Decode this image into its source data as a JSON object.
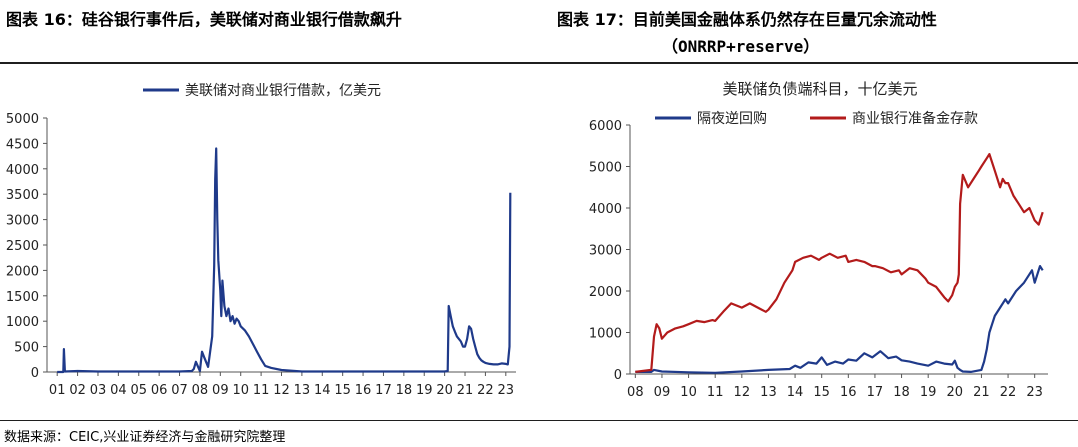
{
  "header": {
    "left_title": "图表 16：硅谷银行事件后，美联储对商业银行借款飙升",
    "right_title": "图表 17：目前美国金融体系仍然存在巨量冗余流动性",
    "right_title_line2": "（ONRRP+reserve）"
  },
  "footer": {
    "source": "数据来源：CEIC,兴业证券经济与金融研究院整理"
  },
  "chart_data": [
    {
      "type": "line",
      "title": "",
      "xlabel": "",
      "ylabel": "",
      "ylim": [
        0,
        5000
      ],
      "yticks": [
        0,
        500,
        1000,
        1500,
        2000,
        2500,
        3000,
        3500,
        4000,
        4500,
        5000
      ],
      "xticks": [
        "01",
        "02",
        "03",
        "04",
        "05",
        "06",
        "07",
        "08",
        "09",
        "10",
        "11",
        "12",
        "13",
        "14",
        "15",
        "16",
        "17",
        "18",
        "19",
        "20",
        "21",
        "22",
        "23"
      ],
      "legend_position": "top",
      "series": [
        {
          "name": "美联储对商业银行借款，亿美元",
          "color": "#1f3a8a",
          "x": [
            2001.0,
            2001.3,
            2001.33,
            2001.38,
            2002,
            2003,
            2004,
            2005,
            2006,
            2007,
            2007.6,
            2007.7,
            2007.8,
            2008.0,
            2008.1,
            2008.2,
            2008.4,
            2008.6,
            2008.7,
            2008.75,
            2008.8,
            2008.85,
            2008.9,
            2009.0,
            2009.05,
            2009.1,
            2009.2,
            2009.3,
            2009.4,
            2009.5,
            2009.6,
            2009.7,
            2009.8,
            2009.9,
            2010.0,
            2010.2,
            2010.4,
            2010.6,
            2010.8,
            2011.0,
            2011.2,
            2011.5,
            2012.0,
            2013.0,
            2014.0,
            2015.0,
            2016.0,
            2017.0,
            2018.0,
            2019.0,
            2020.0,
            2020.15,
            2020.2,
            2020.3,
            2020.4,
            2020.5,
            2020.6,
            2020.8,
            2020.9,
            2021.0,
            2021.1,
            2021.2,
            2021.3,
            2021.4,
            2021.5,
            2021.6,
            2021.7,
            2021.8,
            2021.9,
            2022.0,
            2022.2,
            2022.4,
            2022.6,
            2022.8,
            2023.0,
            2023.1,
            2023.18,
            2023.22
          ],
          "values": [
            0,
            0,
            450,
            10,
            20,
            10,
            10,
            10,
            10,
            10,
            20,
            60,
            200,
            20,
            400,
            300,
            100,
            700,
            2100,
            3800,
            4400,
            3000,
            2200,
            1600,
            1100,
            1800,
            1300,
            1100,
            1250,
            1000,
            1100,
            950,
            1050,
            1000,
            900,
            820,
            700,
            550,
            400,
            250,
            120,
            80,
            40,
            10,
            10,
            10,
            10,
            10,
            10,
            10,
            10,
            20,
            1300,
            1100,
            900,
            800,
            700,
            600,
            500,
            500,
            650,
            900,
            850,
            650,
            500,
            350,
            280,
            230,
            200,
            180,
            160,
            150,
            150,
            170,
            160,
            150,
            500,
            3530
          ]
        }
      ]
    },
    {
      "type": "line",
      "title": "美联储负债端科目，十亿美元",
      "xlabel": "",
      "ylabel": "",
      "ylim": [
        0,
        6000
      ],
      "yticks": [
        0,
        1000,
        2000,
        3000,
        4000,
        5000,
        6000
      ],
      "xticks": [
        "08",
        "09",
        "10",
        "11",
        "12",
        "13",
        "14",
        "15",
        "16",
        "17",
        "18",
        "19",
        "20",
        "21",
        "22",
        "23"
      ],
      "legend_position": "top",
      "series": [
        {
          "name": "隔夜逆回购",
          "color": "#1f3a8a",
          "x": [
            2008.0,
            2008.6,
            2008.7,
            2009.0,
            2010.0,
            2011.0,
            2012.0,
            2013.0,
            2013.8,
            2014.0,
            2014.2,
            2014.5,
            2014.8,
            2015.0,
            2015.2,
            2015.5,
            2015.8,
            2016.0,
            2016.3,
            2016.6,
            2016.9,
            2017.2,
            2017.5,
            2017.8,
            2018.0,
            2018.3,
            2018.6,
            2019.0,
            2019.3,
            2019.6,
            2019.9,
            2020.0,
            2020.1,
            2020.2,
            2020.3,
            2020.6,
            2021.0,
            2021.1,
            2021.2,
            2021.3,
            2021.4,
            2021.5,
            2021.7,
            2021.9,
            2022.0,
            2022.3,
            2022.6,
            2022.9,
            2023.0,
            2023.2,
            2023.3
          ],
          "values": [
            50,
            50,
            100,
            60,
            40,
            30,
            60,
            100,
            120,
            200,
            150,
            280,
            250,
            400,
            220,
            300,
            250,
            350,
            320,
            500,
            400,
            550,
            380,
            420,
            330,
            300,
            250,
            200,
            300,
            250,
            230,
            320,
            150,
            100,
            60,
            50,
            100,
            300,
            600,
            1000,
            1200,
            1400,
            1600,
            1800,
            1700,
            2000,
            2200,
            2500,
            2200,
            2600,
            2500
          ]
        },
        {
          "name": "商业银行准备金存款",
          "color": "#b31b1b",
          "x": [
            2008.0,
            2008.6,
            2008.7,
            2008.8,
            2008.9,
            2009.0,
            2009.2,
            2009.5,
            2009.8,
            2010.0,
            2010.3,
            2010.6,
            2010.9,
            2011.0,
            2011.3,
            2011.6,
            2011.8,
            2012.0,
            2012.3,
            2012.6,
            2012.9,
            2013.0,
            2013.3,
            2013.6,
            2013.9,
            2014.0,
            2014.3,
            2014.6,
            2014.9,
            2015.0,
            2015.3,
            2015.6,
            2015.9,
            2016.0,
            2016.3,
            2016.6,
            2016.9,
            2017.0,
            2017.3,
            2017.6,
            2017.9,
            2018.0,
            2018.3,
            2018.6,
            2018.9,
            2019.0,
            2019.3,
            2019.6,
            2019.75,
            2019.9,
            2020.0,
            2020.1,
            2020.15,
            2020.2,
            2020.3,
            2020.5,
            2020.7,
            2020.9,
            2021.0,
            2021.2,
            2021.3,
            2021.5,
            2021.7,
            2021.8,
            2021.9,
            2022.0,
            2022.2,
            2022.4,
            2022.6,
            2022.8,
            2023.0,
            2023.15,
            2023.3
          ],
          "values": [
            50,
            100,
            900,
            1200,
            1100,
            850,
            1000,
            1100,
            1150,
            1200,
            1280,
            1250,
            1300,
            1280,
            1500,
            1700,
            1650,
            1600,
            1700,
            1600,
            1500,
            1550,
            1800,
            2200,
            2500,
            2700,
            2800,
            2850,
            2750,
            2800,
            2900,
            2800,
            2850,
            2700,
            2750,
            2700,
            2600,
            2600,
            2550,
            2450,
            2500,
            2400,
            2550,
            2500,
            2300,
            2200,
            2100,
            1850,
            1750,
            1900,
            2100,
            2200,
            2400,
            4100,
            4800,
            4500,
            4700,
            4900,
            5000,
            5200,
            5300,
            4900,
            4500,
            4700,
            4600,
            4600,
            4300,
            4100,
            3900,
            4000,
            3700,
            3600,
            3900
          ]
        }
      ]
    }
  ]
}
